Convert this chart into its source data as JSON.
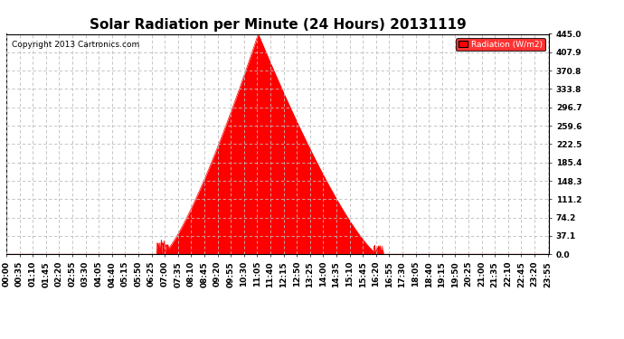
{
  "title": "Solar Radiation per Minute (24 Hours) 20131119",
  "copyright": "Copyright 2013 Cartronics.com",
  "legend_label": "Radiation (W/m2)",
  "legend_bg": "#ff0000",
  "legend_text_color": "#ffffff",
  "fill_color": "#ff0000",
  "line_color": "#ff0000",
  "background_color": "#ffffff",
  "grid_color": "#bbbbbb",
  "yticks": [
    0.0,
    37.1,
    74.2,
    111.2,
    148.3,
    185.4,
    222.5,
    259.6,
    296.7,
    333.8,
    370.8,
    407.9,
    445.0
  ],
  "ylim": [
    0.0,
    445.0
  ],
  "peak_value": 445.0,
  "peak_time_minutes": 668,
  "sunrise_minutes": 415,
  "sunset_minutes": 985,
  "title_fontsize": 11,
  "axis_fontsize": 6.5,
  "copyright_fontsize": 6.5
}
